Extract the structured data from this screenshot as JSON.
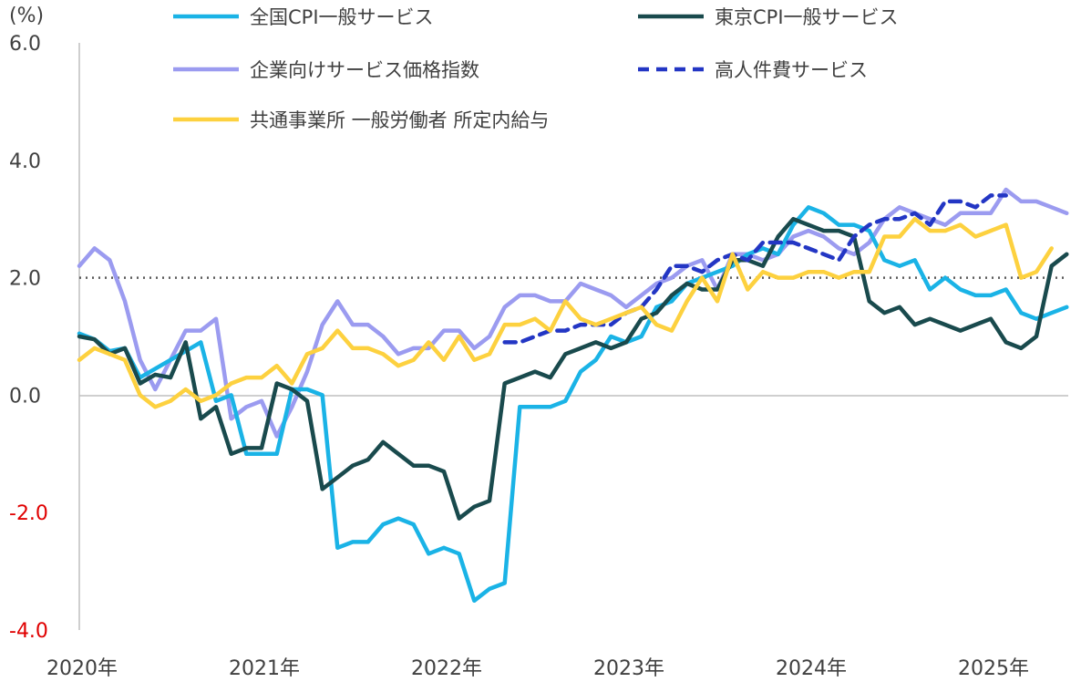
{
  "chart_data": {
    "type": "line",
    "unit_label": "(%)",
    "ylim": [
      -4,
      6
    ],
    "y_ticks": [
      "6.0",
      "4.0",
      "2.0",
      "0.0",
      "-2.0",
      "-4.0"
    ],
    "y_tick_values": [
      6,
      4,
      2,
      0,
      -2,
      -4
    ],
    "x_tick_labels": [
      "2020年",
      "2021年",
      "2022年",
      "2023年",
      "2024年",
      "2025年"
    ],
    "x_start_month": "2020-01",
    "reference_line": 2.0,
    "grid": false,
    "legend_position": "top",
    "series": [
      {
        "name": "全国CPI一般サービス",
        "color": "#1ab3e6",
        "style": "solid",
        "start": "2020-01",
        "values": [
          1.05,
          0.95,
          0.75,
          0.8,
          0.3,
          0.45,
          0.6,
          0.75,
          0.9,
          -0.1,
          0.0,
          -1.0,
          -1.0,
          -1.0,
          0.1,
          0.1,
          0.0,
          -2.6,
          -2.5,
          -2.5,
          -2.2,
          -2.1,
          -2.2,
          -2.7,
          -2.6,
          -2.7,
          -3.5,
          -3.3,
          -3.2,
          -0.2,
          -0.2,
          -0.2,
          -0.1,
          0.4,
          0.6,
          1.0,
          0.9,
          1.0,
          1.5,
          1.6,
          1.9,
          2.0,
          2.1,
          2.2,
          2.4,
          2.5,
          2.4,
          2.9,
          3.2,
          3.1,
          2.9,
          2.9,
          2.8,
          2.3,
          2.2,
          2.3,
          1.8,
          2.0,
          1.8,
          1.7,
          1.7,
          1.8,
          1.4,
          1.3,
          1.4,
          1.5
        ]
      },
      {
        "name": "東京CPI一般サービス",
        "color": "#194a4d",
        "style": "solid",
        "start": "2020-01",
        "values": [
          1.0,
          0.95,
          0.7,
          0.8,
          0.2,
          0.35,
          0.3,
          0.9,
          -0.4,
          -0.2,
          -1.0,
          -0.9,
          -0.9,
          0.2,
          0.1,
          -0.1,
          -1.6,
          -1.4,
          -1.2,
          -1.1,
          -0.8,
          -1.0,
          -1.2,
          -1.2,
          -1.3,
          -2.1,
          -1.9,
          -1.8,
          0.2,
          0.3,
          0.4,
          0.3,
          0.7,
          0.8,
          0.9,
          0.8,
          0.9,
          1.3,
          1.4,
          1.7,
          1.9,
          1.8,
          1.8,
          2.3,
          2.3,
          2.2,
          2.7,
          3.0,
          2.9,
          2.8,
          2.8,
          2.7,
          1.6,
          1.4,
          1.5,
          1.2,
          1.3,
          1.2,
          1.1,
          1.2,
          1.3,
          0.9,
          0.8,
          1.0,
          2.2,
          2.4
        ]
      },
      {
        "name": "企業向けサービス価格指数",
        "color": "#9b9bf0",
        "style": "solid",
        "start": "2020-01",
        "values": [
          2.2,
          2.5,
          2.3,
          1.6,
          0.6,
          0.1,
          0.6,
          1.1,
          1.1,
          1.3,
          -0.4,
          -0.2,
          -0.1,
          -0.7,
          -0.2,
          0.4,
          1.2,
          1.6,
          1.2,
          1.2,
          1.0,
          0.7,
          0.8,
          0.8,
          1.1,
          1.1,
          0.8,
          1.0,
          1.5,
          1.7,
          1.7,
          1.6,
          1.6,
          1.9,
          1.8,
          1.7,
          1.5,
          1.7,
          1.9,
          2.0,
          2.2,
          2.3,
          1.8,
          2.4,
          2.4,
          2.3,
          2.4,
          2.7,
          2.8,
          2.7,
          2.5,
          2.4,
          2.6,
          3.0,
          3.2,
          3.1,
          3.0,
          2.9,
          3.1,
          3.1,
          3.1,
          3.5,
          3.3,
          3.3,
          3.2,
          3.1
        ]
      },
      {
        "name": "高人件費サービス",
        "color": "#2336c4",
        "style": "dashed",
        "start": "2022-05",
        "values": [
          0.9,
          0.9,
          1.0,
          1.1,
          1.1,
          1.2,
          1.2,
          1.2,
          1.4,
          1.5,
          1.8,
          2.2,
          2.2,
          2.1,
          2.3,
          2.4,
          2.3,
          2.6,
          2.6,
          2.6,
          2.5,
          2.4,
          2.3,
          2.7,
          2.9,
          3.0,
          3.0,
          3.1,
          2.9,
          3.3,
          3.3,
          3.2,
          3.4,
          3.4
        ]
      },
      {
        "name": "共通事業所 一般労働者 所定内給与",
        "color": "#fdd13f",
        "style": "solid",
        "start": "2020-01",
        "values": [
          0.6,
          0.8,
          0.7,
          0.6,
          0.0,
          -0.2,
          -0.1,
          0.1,
          -0.1,
          0.0,
          0.2,
          0.3,
          0.3,
          0.5,
          0.2,
          0.7,
          0.8,
          1.1,
          0.8,
          0.8,
          0.7,
          0.5,
          0.6,
          0.9,
          0.6,
          1.0,
          0.6,
          0.7,
          1.2,
          1.2,
          1.3,
          1.1,
          1.6,
          1.3,
          1.2,
          1.3,
          1.4,
          1.5,
          1.2,
          1.1,
          1.6,
          2.0,
          1.6,
          2.4,
          1.8,
          2.1,
          2.0,
          2.0,
          2.1,
          2.1,
          2.0,
          2.1,
          2.1,
          2.7,
          2.7,
          3.0,
          2.8,
          2.8,
          2.9,
          2.7,
          2.8,
          2.9,
          2.0,
          2.1,
          2.5
        ]
      }
    ]
  }
}
